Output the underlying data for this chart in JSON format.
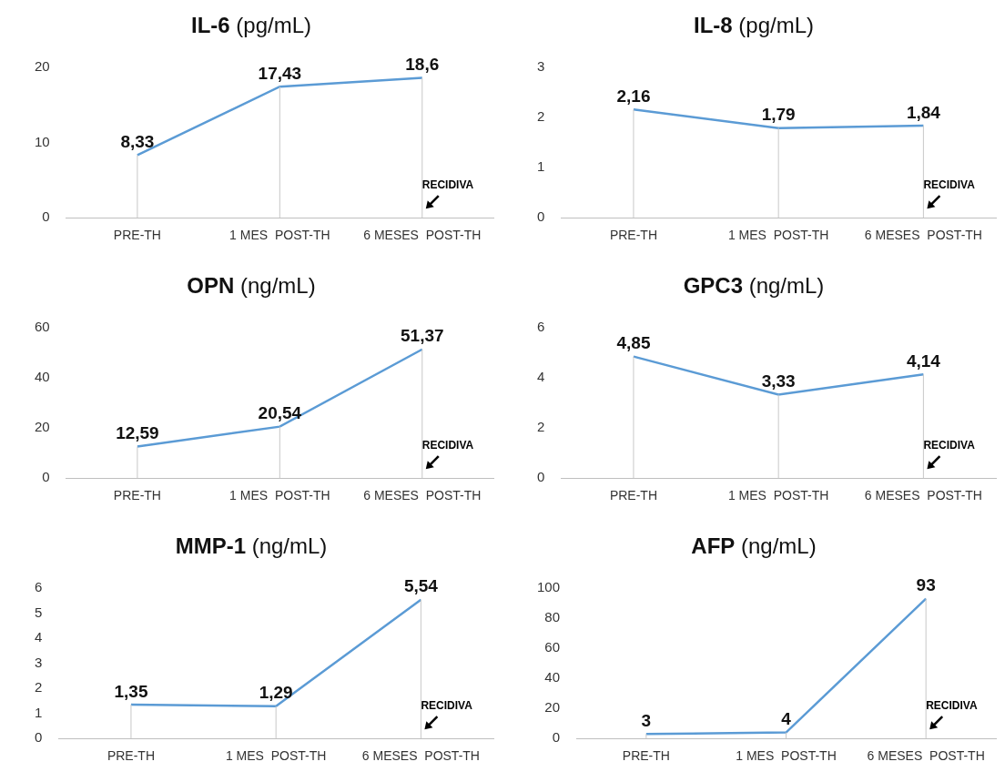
{
  "chart_data": [
    {
      "type": "line",
      "title": "IL-6 (pg/mL)",
      "categories": [
        "PRE-TH",
        "1 MES  POST-TH",
        "6 MESES  POST-TH"
      ],
      "values": [
        8.33,
        17.43,
        18.6
      ],
      "value_labels": [
        "8,33",
        "17,43",
        "18,6"
      ],
      "color": "#5b9bd5",
      "ylim": [
        0,
        20
      ],
      "yticks": [
        0,
        10,
        20
      ],
      "grid": "x",
      "legend": false,
      "marker": "none",
      "annotations": [
        "RECIDIVA"
      ]
    },
    {
      "type": "line",
      "title": "IL-8 (pg/mL)",
      "categories": [
        "PRE-TH",
        "1 MES  POST-TH",
        "6 MESES  POST-TH"
      ],
      "values": [
        2.16,
        1.79,
        1.84
      ],
      "value_labels": [
        "2,16",
        "1,79",
        "1,84"
      ],
      "color": "#5b9bd5",
      "ylim": [
        0,
        3
      ],
      "yticks": [
        0,
        1,
        2,
        3
      ],
      "grid": "x",
      "legend": false,
      "marker": "none",
      "annotations": [
        "RECIDIVA"
      ]
    },
    {
      "type": "line",
      "title": "OPN (ng/mL)",
      "categories": [
        "PRE-TH",
        "1 MES  POST-TH",
        "6 MESES  POST-TH"
      ],
      "values": [
        12.59,
        20.54,
        51.37
      ],
      "value_labels": [
        "12,59",
        "20,54",
        "51,37"
      ],
      "color": "#5b9bd5",
      "ylim": [
        0,
        60
      ],
      "yticks": [
        0,
        20,
        40,
        60
      ],
      "grid": "x",
      "legend": false,
      "marker": "none",
      "annotations": [
        "RECIDIVA"
      ]
    },
    {
      "type": "line",
      "title": "GPC3 (ng/mL)",
      "categories": [
        "PRE-TH",
        "1 MES  POST-TH",
        "6 MESES  POST-TH"
      ],
      "values": [
        4.85,
        3.33,
        4.14
      ],
      "value_labels": [
        "4,85",
        "3,33",
        "4,14"
      ],
      "color": "#5b9bd5",
      "ylim": [
        0,
        6
      ],
      "yticks": [
        0,
        2,
        4,
        6
      ],
      "grid": "x",
      "legend": false,
      "marker": "none",
      "annotations": [
        "RECIDIVA"
      ]
    },
    {
      "type": "line",
      "title": "MMP-1 (ng/mL)",
      "categories": [
        "PRE-TH",
        "1 MES  POST-TH",
        "6 MESES  POST-TH"
      ],
      "values": [
        1.35,
        1.29,
        5.54
      ],
      "value_labels": [
        "1,35",
        "1,29",
        "5,54"
      ],
      "color": "#5b9bd5",
      "ylim": [
        0,
        6
      ],
      "yticks": [
        0,
        1,
        2,
        3,
        4,
        5,
        6
      ],
      "grid": "x",
      "legend": false,
      "marker": "none",
      "annotations": [
        "RECIDIVA"
      ]
    },
    {
      "type": "line",
      "title": "AFP (ng/mL)",
      "categories": [
        "PRE-TH",
        "1 MES  POST-TH",
        "6 MESES  POST-TH"
      ],
      "values": [
        3,
        4,
        93
      ],
      "value_labels": [
        "3",
        "4",
        "93"
      ],
      "color": "#5b9bd5",
      "ylim": [
        0,
        100
      ],
      "yticks": [
        0,
        20,
        40,
        60,
        80,
        100
      ],
      "grid": "x",
      "legend": false,
      "marker": "none",
      "annotations": [
        "RECIDIVA"
      ]
    }
  ]
}
